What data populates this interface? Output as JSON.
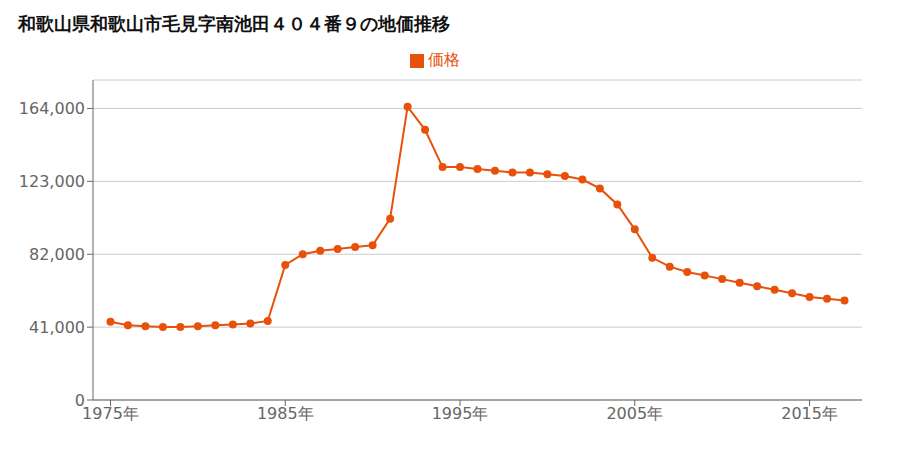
{
  "chart_data": {
    "type": "line",
    "title": "和歌山県和歌山市毛見字南池田４０４番９の地価推移",
    "x": [
      1975,
      1976,
      1977,
      1978,
      1979,
      1980,
      1981,
      1982,
      1983,
      1984,
      1985,
      1986,
      1987,
      1988,
      1989,
      1990,
      1991,
      1992,
      1993,
      1994,
      1995,
      1996,
      1997,
      1998,
      1999,
      2000,
      2001,
      2002,
      2003,
      2004,
      2005,
      2006,
      2007,
      2008,
      2009,
      2010,
      2011,
      2012,
      2013,
      2014,
      2015,
      2016,
      2017
    ],
    "series": [
      {
        "name": "価格",
        "color": "#e8510a",
        "marker": "circle",
        "values": [
          44000,
          42000,
          41500,
          41000,
          41000,
          41500,
          42000,
          42500,
          43000,
          44500,
          76000,
          82000,
          84000,
          85000,
          86000,
          87000,
          102000,
          165000,
          152000,
          131000,
          131000,
          130000,
          129000,
          128000,
          128000,
          127000,
          126000,
          124000,
          119000,
          110000,
          96000,
          80000,
          75000,
          72000,
          70000,
          68000,
          66000,
          64000,
          62000,
          60000,
          58000,
          57000,
          56000
        ]
      }
    ],
    "xlim": [
      1974,
      2018
    ],
    "xticks": [
      {
        "value": 1975,
        "label": "1975年"
      },
      {
        "value": 1985,
        "label": "1985年"
      },
      {
        "value": 1995,
        "label": "1995年"
      },
      {
        "value": 2005,
        "label": "2005年"
      },
      {
        "value": 2015,
        "label": "2015年"
      }
    ],
    "ylim": [
      0,
      180000
    ],
    "yticks": [
      0,
      {
        "value": 41000,
        "label": "41,000"
      },
      {
        "value": 82000,
        "label": "82,000"
      },
      {
        "value": 123000,
        "label": "123,000"
      },
      {
        "value": 164000,
        "label": "164,000"
      }
    ],
    "grid": true,
    "legend": "top"
  }
}
